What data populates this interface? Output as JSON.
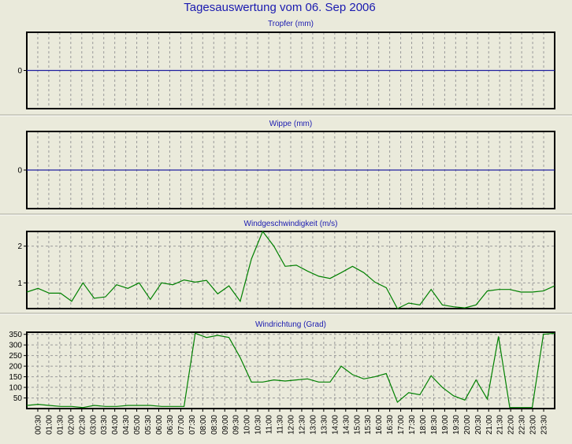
{
  "title": "Tagesauswertung vom 06. Sep 2006",
  "x_tick_labels": [
    "00:30",
    "01:00",
    "01:30",
    "02:00",
    "02:30",
    "03:00",
    "03:30",
    "04:00",
    "04:30",
    "05:00",
    "05:30",
    "06:00",
    "06:30",
    "07:00",
    "07:30",
    "08:00",
    "08:30",
    "09:00",
    "09:30",
    "10:00",
    "10:30",
    "11:00",
    "11:30",
    "12:00",
    "12:30",
    "13:00",
    "13:30",
    "14:00",
    "14:30",
    "15:00",
    "15:30",
    "16:00",
    "16:30",
    "17:00",
    "17:30",
    "18:00",
    "18:30",
    "19:00",
    "19:30",
    "20:00",
    "20:30",
    "21:00",
    "21:30",
    "22:00",
    "22:30",
    "23:00",
    "23:30"
  ],
  "colors": {
    "background": "#eaeadb",
    "plot_background": "#eaeadb",
    "zero_line": "#2020a0",
    "series_line": "#008000",
    "title_text": "#1a1ab0",
    "grid": "#9a9a9a"
  },
  "chart_data": [
    {
      "type": "line",
      "title": "Tropfer (mm)",
      "ylim": [
        -1,
        1
      ],
      "yticks": [
        0
      ],
      "grid": true,
      "series": [
        {
          "values": [
            0,
            0,
            0,
            0,
            0,
            0,
            0,
            0,
            0,
            0,
            0,
            0,
            0,
            0,
            0,
            0,
            0,
            0,
            0,
            0,
            0,
            0,
            0,
            0,
            0,
            0,
            0,
            0,
            0,
            0,
            0,
            0,
            0,
            0,
            0,
            0,
            0,
            0,
            0,
            0,
            0,
            0,
            0,
            0,
            0,
            0,
            0,
            0,
            0
          ]
        }
      ]
    },
    {
      "type": "line",
      "title": "Wippe (mm)",
      "ylim": [
        -1,
        1
      ],
      "yticks": [
        0
      ],
      "grid": true,
      "series": [
        {
          "values": [
            0,
            0,
            0,
            0,
            0,
            0,
            0,
            0,
            0,
            0,
            0,
            0,
            0,
            0,
            0,
            0,
            0,
            0,
            0,
            0,
            0,
            0,
            0,
            0,
            0,
            0,
            0,
            0,
            0,
            0,
            0,
            0,
            0,
            0,
            0,
            0,
            0,
            0,
            0,
            0,
            0,
            0,
            0,
            0,
            0,
            0,
            0,
            0,
            0
          ]
        }
      ]
    },
    {
      "type": "line",
      "title": "Windgeschwindigkeit (m/s)",
      "ylim": [
        0.3,
        2.4
      ],
      "yticks": [
        1,
        2
      ],
      "grid": true,
      "series": [
        {
          "values": [
            0.75,
            0.85,
            0.72,
            0.72,
            0.5,
            1.0,
            0.58,
            0.62,
            0.95,
            0.85,
            1.0,
            0.55,
            1.0,
            0.95,
            1.08,
            1.02,
            1.07,
            0.7,
            0.92,
            0.5,
            1.65,
            2.4,
            2.0,
            1.45,
            1.48,
            1.32,
            1.18,
            1.12,
            1.28,
            1.45,
            1.28,
            1.02,
            0.87,
            0.3,
            0.45,
            0.4,
            0.82,
            0.4,
            0.35,
            0.32,
            0.4,
            0.78,
            0.82,
            0.82,
            0.75,
            0.75,
            0.78,
            0.92
          ]
        }
      ]
    },
    {
      "type": "line",
      "title": "Windrichtung (Grad)",
      "ylim": [
        0,
        360
      ],
      "yticks": [
        50,
        100,
        150,
        200,
        250,
        300,
        350
      ],
      "grid": true,
      "series": [
        {
          "values": [
            15,
            20,
            15,
            10,
            10,
            5,
            15,
            10,
            10,
            15,
            15,
            15,
            10,
            10,
            10,
            355,
            335,
            345,
            335,
            240,
            125,
            125,
            135,
            130,
            135,
            140,
            125,
            125,
            200,
            160,
            140,
            150,
            165,
            30,
            75,
            65,
            155,
            100,
            60,
            40,
            135,
            45,
            340,
            5,
            5,
            5,
            350,
            355
          ]
        }
      ]
    }
  ]
}
